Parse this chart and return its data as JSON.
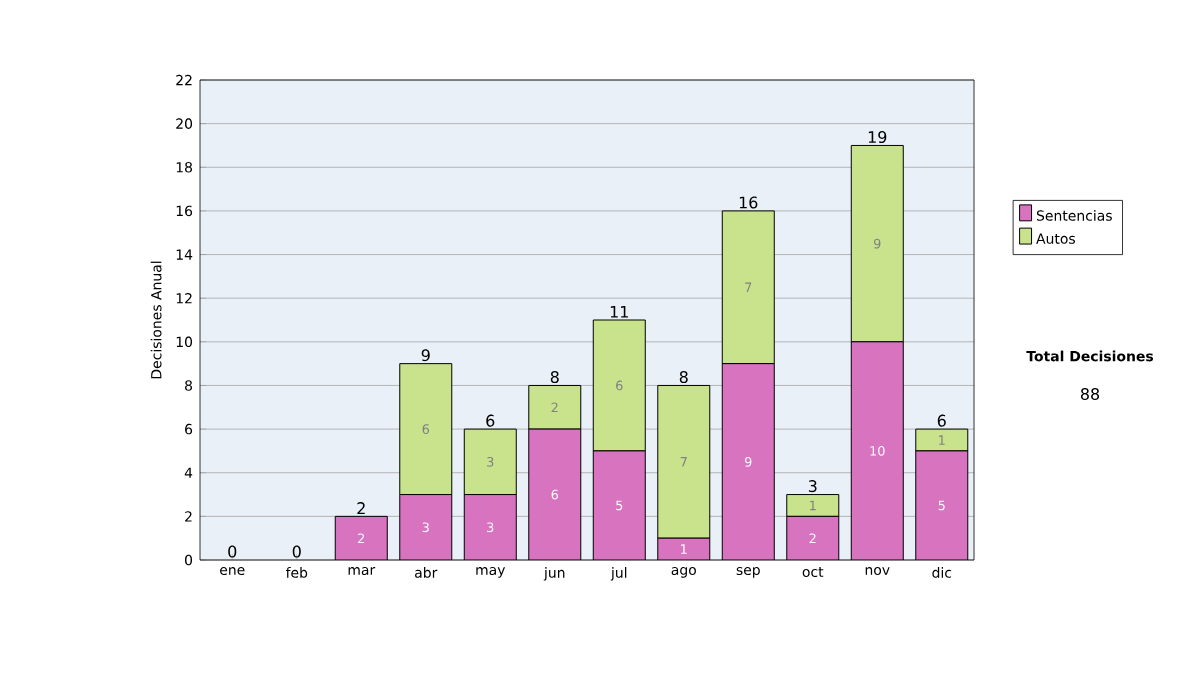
{
  "chart_data": {
    "type": "bar",
    "stacked": true,
    "ylabel": "Decisiones Anual",
    "categories": [
      "ene",
      "feb",
      "mar",
      "abr",
      "may",
      "jun",
      "jul",
      "ago",
      "sep",
      "oct",
      "nov",
      "dic"
    ],
    "series": [
      {
        "name": "Sentencias",
        "color": "#d873c0",
        "values": [
          0,
          0,
          2,
          3,
          3,
          6,
          5,
          1,
          9,
          2,
          10,
          5
        ],
        "value_labels": [
          null,
          null,
          "2",
          "3",
          "3",
          "6",
          "5",
          "1",
          "9",
          "2",
          "10",
          "5"
        ]
      },
      {
        "name": "Autos",
        "color": "#c9e38c",
        "values": [
          0,
          0,
          0,
          6,
          3,
          2,
          6,
          7,
          7,
          1,
          9,
          1
        ],
        "value_labels": [
          null,
          null,
          null,
          "6",
          "3",
          "2",
          "6",
          "7",
          "7",
          "1",
          "9",
          "1"
        ]
      }
    ],
    "totals": [
      "0",
      "0",
      "2",
      "9",
      "6",
      "8",
      "11",
      "8",
      "16",
      "3",
      "19",
      "6"
    ],
    "ylim": [
      0,
      22
    ],
    "yticks": [
      0,
      2,
      4,
      6,
      8,
      10,
      12,
      14,
      16,
      18,
      20,
      22
    ],
    "grid": "y",
    "legend": "right",
    "annotations": [
      "Total Decisiones",
      "88"
    ]
  }
}
